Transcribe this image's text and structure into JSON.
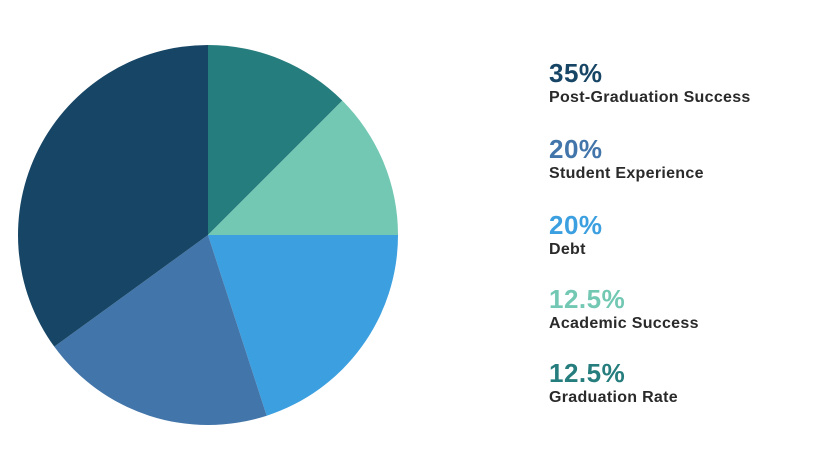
{
  "chart_data": {
    "type": "pie",
    "start_angle_deg": 0,
    "direction": "clockwise",
    "slices": [
      {
        "label": "Graduation Rate",
        "display": "12.5%",
        "value": 12.5,
        "color": "#267d7d"
      },
      {
        "label": "Academic Success",
        "display": "12.5%",
        "value": 12.5,
        "color": "#73c8b4"
      },
      {
        "label": "Debt",
        "display": "20%",
        "value": 20,
        "color": "#3b9fe0"
      },
      {
        "label": "Student Experience",
        "display": "20%",
        "value": 20,
        "color": "#4275aa"
      },
      {
        "label": "Post-Graduation Success",
        "display": "35%",
        "value": 35,
        "color": "#174565"
      }
    ],
    "legend": [
      {
        "value": "35%",
        "label": "Post-Graduation Success",
        "color": "#174565"
      },
      {
        "value": "20%",
        "label": "Student Experience",
        "color": "#4275aa"
      },
      {
        "value": "20%",
        "label": "Debt",
        "color": "#3b9fe0"
      },
      {
        "value": "12.5%",
        "label": "Academic Success",
        "color": "#73c8b4"
      },
      {
        "value": "12.5%",
        "label": "Graduation Rate",
        "color": "#267d7d"
      }
    ]
  }
}
